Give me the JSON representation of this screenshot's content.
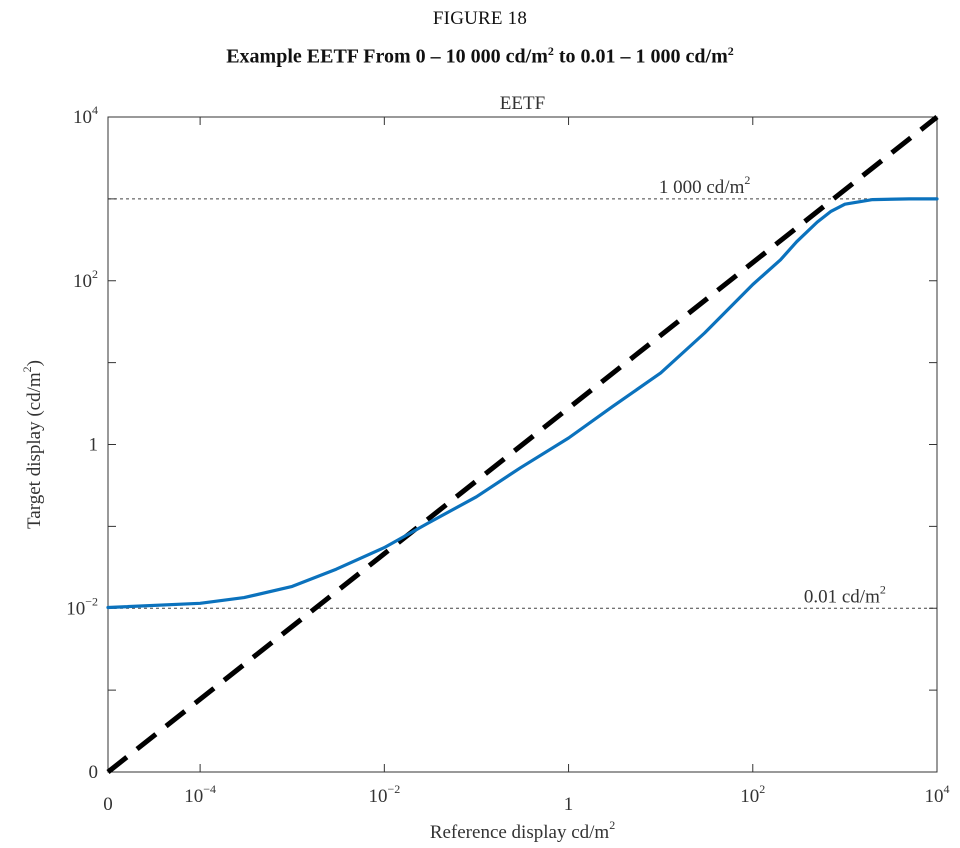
{
  "figure": {
    "label": "FIGURE 18",
    "title_parts": [
      "Example EETF From 0 – 10 000 cd/m",
      "2",
      " to 0.01 – 1 000 cd/m",
      "2"
    ]
  },
  "chart_data": {
    "type": "line",
    "title": "EETF",
    "xlabel": {
      "text": "Reference display cd/m",
      "sup": "2"
    },
    "ylabel": {
      "text": "Target display (cd/m",
      "sup": "2",
      "suffix": ")"
    },
    "x_scale": "log",
    "y_scale": "log",
    "xlim": [
      1e-05,
      10000
    ],
    "ylim": [
      0.0001,
      10000
    ],
    "x_ticks": [
      {
        "value": 1e-05,
        "base": "0",
        "exp": ""
      },
      {
        "value": 0.0001,
        "base": "10",
        "exp": "−4"
      },
      {
        "value": 0.01,
        "base": "10",
        "exp": "−2"
      },
      {
        "value": 1,
        "base": "1",
        "exp": ""
      },
      {
        "value": 100,
        "base": "10",
        "exp": "2"
      },
      {
        "value": 10000,
        "base": "10",
        "exp": "4"
      }
    ],
    "y_ticks": [
      {
        "value": 0.0001,
        "base": "0",
        "exp": ""
      },
      {
        "value": 0.001,
        "base": "",
        "exp": ""
      },
      {
        "value": 0.01,
        "base": "10",
        "exp": "−2"
      },
      {
        "value": 0.1,
        "base": "",
        "exp": ""
      },
      {
        "value": 1,
        "base": "1",
        "exp": ""
      },
      {
        "value": 10,
        "base": "",
        "exp": ""
      },
      {
        "value": 100,
        "base": "10",
        "exp": "2"
      },
      {
        "value": 1000,
        "base": "",
        "exp": ""
      },
      {
        "value": 10000,
        "base": "10",
        "exp": "4"
      }
    ],
    "reference_lines": [
      {
        "y": 1000,
        "label": "1 000 cd/m",
        "sup": "2",
        "label_x": 30
      },
      {
        "y": 0.01,
        "label": "0.01 cd/m",
        "sup": "2",
        "label_x": 1000
      }
    ],
    "series": [
      {
        "style": "dashed",
        "color": "#000000",
        "x": [
          1e-05,
          10000
        ],
        "y": [
          0.0001,
          10000
        ]
      },
      {
        "style": "solid",
        "color": "#0b72bd",
        "x": [
          1e-05,
          0.0001,
          0.0003,
          0.001,
          0.003,
          0.01,
          0.03,
          0.1,
          0.3,
          1,
          3,
          10,
          30,
          100,
          200,
          300,
          500,
          700,
          1000,
          2000,
          5000,
          10000
        ],
        "y": [
          0.0102,
          0.0115,
          0.0135,
          0.0185,
          0.03,
          0.055,
          0.11,
          0.23,
          0.52,
          1.2,
          2.9,
          7.5,
          23,
          90,
          180,
          300,
          520,
          700,
          860,
          980,
          1000,
          1000
        ]
      }
    ]
  }
}
